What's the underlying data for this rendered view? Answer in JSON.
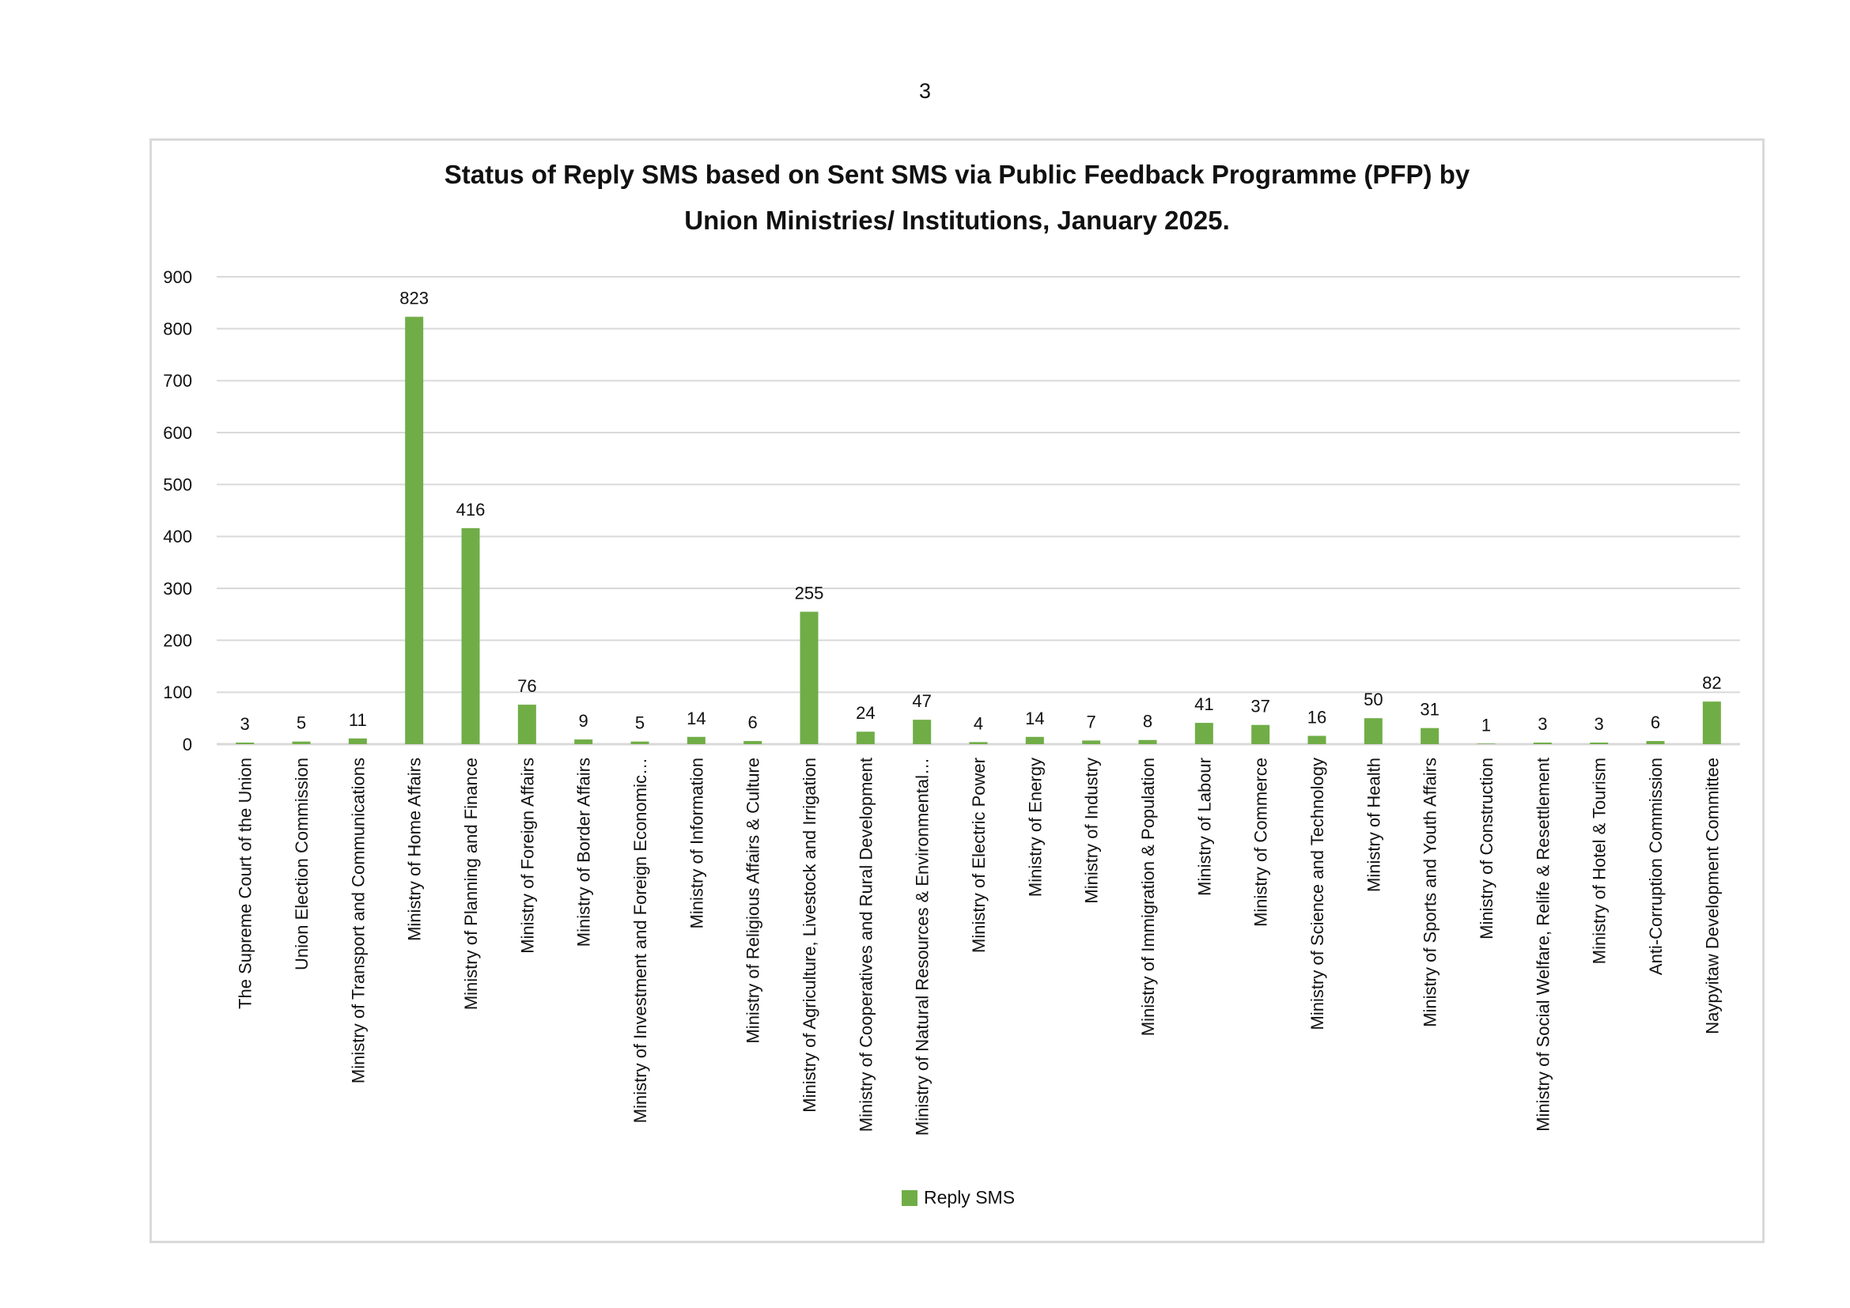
{
  "page": {
    "number": "3"
  },
  "chart_data": {
    "type": "bar",
    "title_lines": [
      "Status of Reply SMS based on Sent SMS via Public Feedback Programme (PFP) by",
      "Union Ministries/ Institutions, January 2025."
    ],
    "categories": [
      "The Supreme Court of the Union",
      "Union Election Commission",
      "Ministry of Transport and Communications",
      "Ministry of Home Affairs",
      "Ministry of Planning and Finance",
      "Ministry of Foreign Affairs",
      "Ministry of Border Affairs",
      "Ministry of Investment and Foreign Economic…",
      "Ministry of Information",
      "Ministry of Religious Affairs & Culture",
      "Ministry of Agriculture, Livestock and Irrigation",
      "Ministry of Cooperatives and Rural Development",
      "Ministry of Natural Resources & Environmental…",
      "Ministry of Electric Power",
      "Ministry of Energy",
      "Ministry of Industry",
      "Ministry of Immigration & Population",
      "Ministry of Labour",
      "Ministry of Commerce",
      "Ministry of Science and Technology",
      "Ministry of Health",
      "Ministry of Sports and Youth Affairs",
      "Ministry of Construction",
      "Ministry of Social Welfare, Relife & Resettlement",
      "Ministry of Hotel & Tourism",
      "Anti-Corruption Commission",
      "Naypyitaw Development Committee"
    ],
    "series": [
      {
        "name": "Reply SMS",
        "values": [
          3,
          5,
          11,
          823,
          416,
          76,
          9,
          5,
          14,
          6,
          255,
          24,
          47,
          4,
          14,
          7,
          8,
          41,
          37,
          16,
          50,
          31,
          1,
          3,
          3,
          6,
          82
        ]
      }
    ],
    "y_ticks": [
      "0",
      "100",
      "200",
      "300",
      "400",
      "500",
      "600",
      "700",
      "800",
      "900"
    ],
    "ylim": [
      0,
      900
    ],
    "grid": true,
    "legend_position": "bottom",
    "bar_color": "#70ad47",
    "grid_color": "#d9d9d9"
  }
}
